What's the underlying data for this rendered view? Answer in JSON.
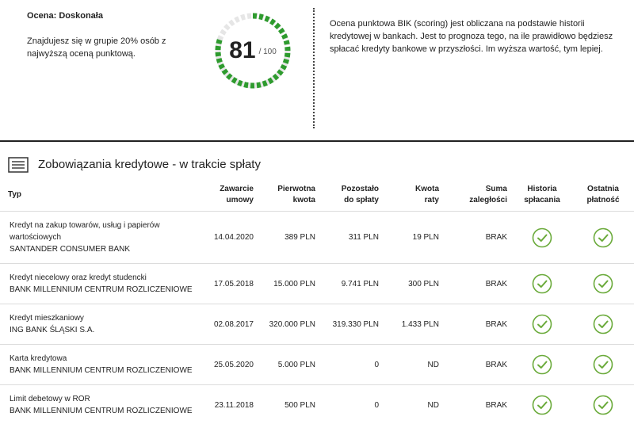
{
  "summary": {
    "rating_label": "Ocena: Doskonała",
    "group_text": "Znajdujesz się w grupie 20% osób z najwyższą oceną punktową.",
    "score": "81",
    "score_max": "/ 100",
    "score_fraction": 0.81,
    "description": "Ocena punktowa BIK (scoring) jest obliczana na podstawie historii kredytowej w bankach. Jest to prognoza tego, na ile prawidłowo będziesz spłacać kredyty bankowe w przyszłości. Im wyższa wartość, tym lepiej."
  },
  "colors": {
    "gauge_fill": "#2e9b2e",
    "gauge_track": "#e6e6e6",
    "check": "#6aaa3a"
  },
  "section": {
    "title": "Zobowiązania kredytowe - w trakcie spłaty",
    "icon": "list-icon"
  },
  "table": {
    "headers": {
      "type": "Typ",
      "date_1": "Zawarcie",
      "date_2": "umowy",
      "orig_1": "Pierwotna",
      "orig_2": "kwota",
      "rem_1": "Pozostało",
      "rem_2": "do spłaty",
      "inst_1": "Kwota",
      "inst_2": "raty",
      "arr_1": "Suma",
      "arr_2": "zaległości",
      "hist_1": "Historia",
      "hist_2": "spłacania",
      "last_1": "Ostatnia",
      "last_2": "płatność"
    },
    "rows": [
      {
        "type_1": "Kredyt na zakup towarów, usług i papierów",
        "type_2": "wartościowych",
        "bank": "SANTANDER CONSUMER BANK",
        "date": "14.04.2020",
        "original": "389 PLN",
        "remaining": "311 PLN",
        "installment": "19 PLN",
        "arrears": "BRAK",
        "history": "check-icon",
        "last_payment": "check-icon"
      },
      {
        "type_1": "Kredyt niecelowy oraz kredyt studencki",
        "bank": "BANK MILLENNIUM CENTRUM ROZLICZENIOWE",
        "date": "17.05.2018",
        "original": "15.000 PLN",
        "remaining": "9.741 PLN",
        "installment": "300 PLN",
        "arrears": "BRAK",
        "history": "check-icon",
        "last_payment": "check-icon"
      },
      {
        "type_1": "Kredyt mieszkaniowy",
        "bank": "ING BANK ŚLĄSKI S.A.",
        "date": "02.08.2017",
        "original": "320.000 PLN",
        "remaining": "319.330 PLN",
        "installment": "1.433 PLN",
        "arrears": "BRAK",
        "history": "check-icon",
        "last_payment": "check-icon"
      },
      {
        "type_1": "Karta kredytowa",
        "bank": "BANK MILLENNIUM CENTRUM ROZLICZENIOWE",
        "date": "25.05.2020",
        "original": "5.000 PLN",
        "remaining": "0",
        "installment": "ND",
        "arrears": "BRAK",
        "history": "check-icon",
        "last_payment": "check-icon"
      },
      {
        "type_1": "Limit debetowy w ROR",
        "bank": "BANK MILLENNIUM CENTRUM ROZLICZENIOWE",
        "date": "23.11.2018",
        "original": "500 PLN",
        "remaining": "0",
        "installment": "ND",
        "arrears": "BRAK",
        "history": "check-icon",
        "last_payment": "check-icon"
      }
    ]
  }
}
